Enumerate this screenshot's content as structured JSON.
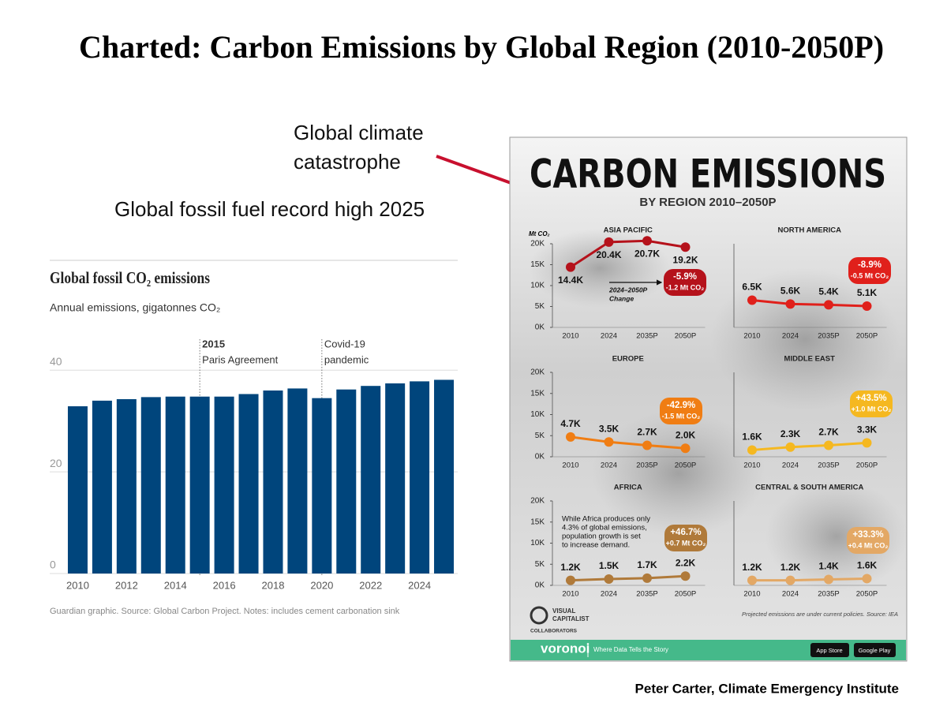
{
  "slide": {
    "title": "Charted: Carbon Emissions by Global Region (2010-2050P)",
    "callout": [
      "Global climate",
      "catastrophe"
    ],
    "left_caption": "Global fossil fuel record high 2025",
    "credit": "Peter Carter, Climate Emergency Institute"
  },
  "infographic": {
    "title": "CARBON EMISSIONS",
    "subtitle": "BY REGION 2010–2050P",
    "brand": [
      "VISUAL",
      "CAPITALIST"
    ],
    "collaborators": "COLLABORATORS",
    "source": "Projected emissions are under current policies. Source: IEA",
    "footer_brand": "voronoi",
    "footer_tagline": "Where Data Tells the Story",
    "app_store": "App Store",
    "google_play": "Google Play"
  },
  "chart_data": [
    {
      "type": "bar",
      "title": "Global fossil CO₂ emissions",
      "subtitle": "Annual emissions, gigatonnes CO₂",
      "categories": [
        "2010",
        null,
        "2012",
        null,
        "2014",
        null,
        "2016",
        null,
        "2018",
        null,
        "2020",
        null,
        "2022",
        null,
        "2024",
        null
      ],
      "values": [
        32.9,
        34.0,
        34.3,
        34.7,
        34.8,
        34.8,
        34.8,
        35.3,
        36.0,
        36.4,
        34.5,
        36.2,
        36.9,
        37.4,
        37.8,
        38.1
      ],
      "color": "#00457c",
      "ylim": [
        0,
        45
      ],
      "yticks": [
        0,
        20,
        40
      ],
      "grid": true,
      "annotations": [
        {
          "label": "2015",
          "text": "Paris Agreement"
        },
        {
          "label": "Covid-19",
          "text": "pandemic"
        }
      ],
      "source": "Guardian graphic. Source: Global Carbon Project. Notes: includes cement carbonation sink"
    },
    {
      "type": "line",
      "title": "ASIA PACIFIC",
      "y_label": "Mt CO₂",
      "categories": [
        "2010",
        "2024",
        "2035P",
        "2050P"
      ],
      "values": [
        14400,
        20400,
        20700,
        19200
      ],
      "value_labels": [
        "14.4K",
        "20.4K",
        "20.7K",
        "19.2K"
      ],
      "color": "#b5121b",
      "ylim": [
        0,
        20000
      ],
      "yticks": [
        {
          "value": 0,
          "label": "0K"
        },
        {
          "value": 5000,
          "label": "5K"
        },
        {
          "value": 10000,
          "label": "10K"
        },
        {
          "value": 15000,
          "label": "15K"
        },
        {
          "value": 20000,
          "label": "20K"
        }
      ],
      "change": "-5.9%",
      "change_abs": "-1.2 Mt CO₂",
      "note": [
        "2024–2050P",
        "Change"
      ]
    },
    {
      "type": "line",
      "title": "NORTH AMERICA",
      "categories": [
        "2010",
        "2024",
        "2035P",
        "2050P"
      ],
      "values": [
        6500,
        5600,
        5400,
        5100
      ],
      "value_labels": [
        "6.5K",
        "5.6K",
        "5.4K",
        "5.1K"
      ],
      "color": "#e0201b",
      "ylim": [
        0,
        20000
      ],
      "change": "-8.9%",
      "change_abs": "-0.5 Mt CO₂"
    },
    {
      "type": "line",
      "title": "EUROPE",
      "categories": [
        "2010",
        "2024",
        "2035P",
        "2050P"
      ],
      "values": [
        4700,
        3500,
        2700,
        2000
      ],
      "value_labels": [
        "4.7K",
        "3.5K",
        "2.7K",
        "2.0K"
      ],
      "color": "#f07d13",
      "ylim": [
        0,
        20000
      ],
      "yticks": [
        {
          "value": 0,
          "label": "0K"
        },
        {
          "value": 5000,
          "label": "5K"
        },
        {
          "value": 10000,
          "label": "10K"
        },
        {
          "value": 15000,
          "label": "15K"
        },
        {
          "value": 20000,
          "label": "20K"
        }
      ],
      "change": "-42.9%",
      "change_abs": "-1.5 Mt CO₂"
    },
    {
      "type": "line",
      "title": "MIDDLE EAST",
      "categories": [
        "2010",
        "2024",
        "2035P",
        "2050P"
      ],
      "values": [
        1600,
        2300,
        2700,
        3300
      ],
      "value_labels": [
        "1.6K",
        "2.3K",
        "2.7K",
        "3.3K"
      ],
      "color": "#f5b820",
      "ylim": [
        0,
        20000
      ],
      "change": "+43.5%",
      "change_abs": "+1.0 Mt CO₂"
    },
    {
      "type": "line",
      "title": "AFRICA",
      "categories": [
        "2010",
        "2024",
        "2035P",
        "2050P"
      ],
      "values": [
        1200,
        1500,
        1700,
        2200
      ],
      "value_labels": [
        "1.2K",
        "1.5K",
        "1.7K",
        "2.2K"
      ],
      "color": "#b07a3a",
      "ylim": [
        0,
        20000
      ],
      "yticks": [
        {
          "value": 0,
          "label": "0K"
        },
        {
          "value": 5000,
          "label": "5K"
        },
        {
          "value": 10000,
          "label": "10K"
        },
        {
          "value": 15000,
          "label": "15K"
        },
        {
          "value": 20000,
          "label": "20K"
        }
      ],
      "change": "+46.7%",
      "change_abs": "+0.7 Mt CO₂",
      "note": [
        "While Africa produces only",
        "4.3% of global emissions,",
        "population growth is set",
        "to increase demand."
      ]
    },
    {
      "type": "line",
      "title": "CENTRAL & SOUTH AMERICA",
      "categories": [
        "2010",
        "2024",
        "2035P",
        "2050P"
      ],
      "values": [
        1200,
        1200,
        1400,
        1600
      ],
      "value_labels": [
        "1.2K",
        "1.2K",
        "1.4K",
        "1.6K"
      ],
      "color": "#e3a865",
      "ylim": [
        0,
        20000
      ],
      "change": "+33.3%",
      "change_abs": "+0.4 Mt CO₂"
    }
  ]
}
